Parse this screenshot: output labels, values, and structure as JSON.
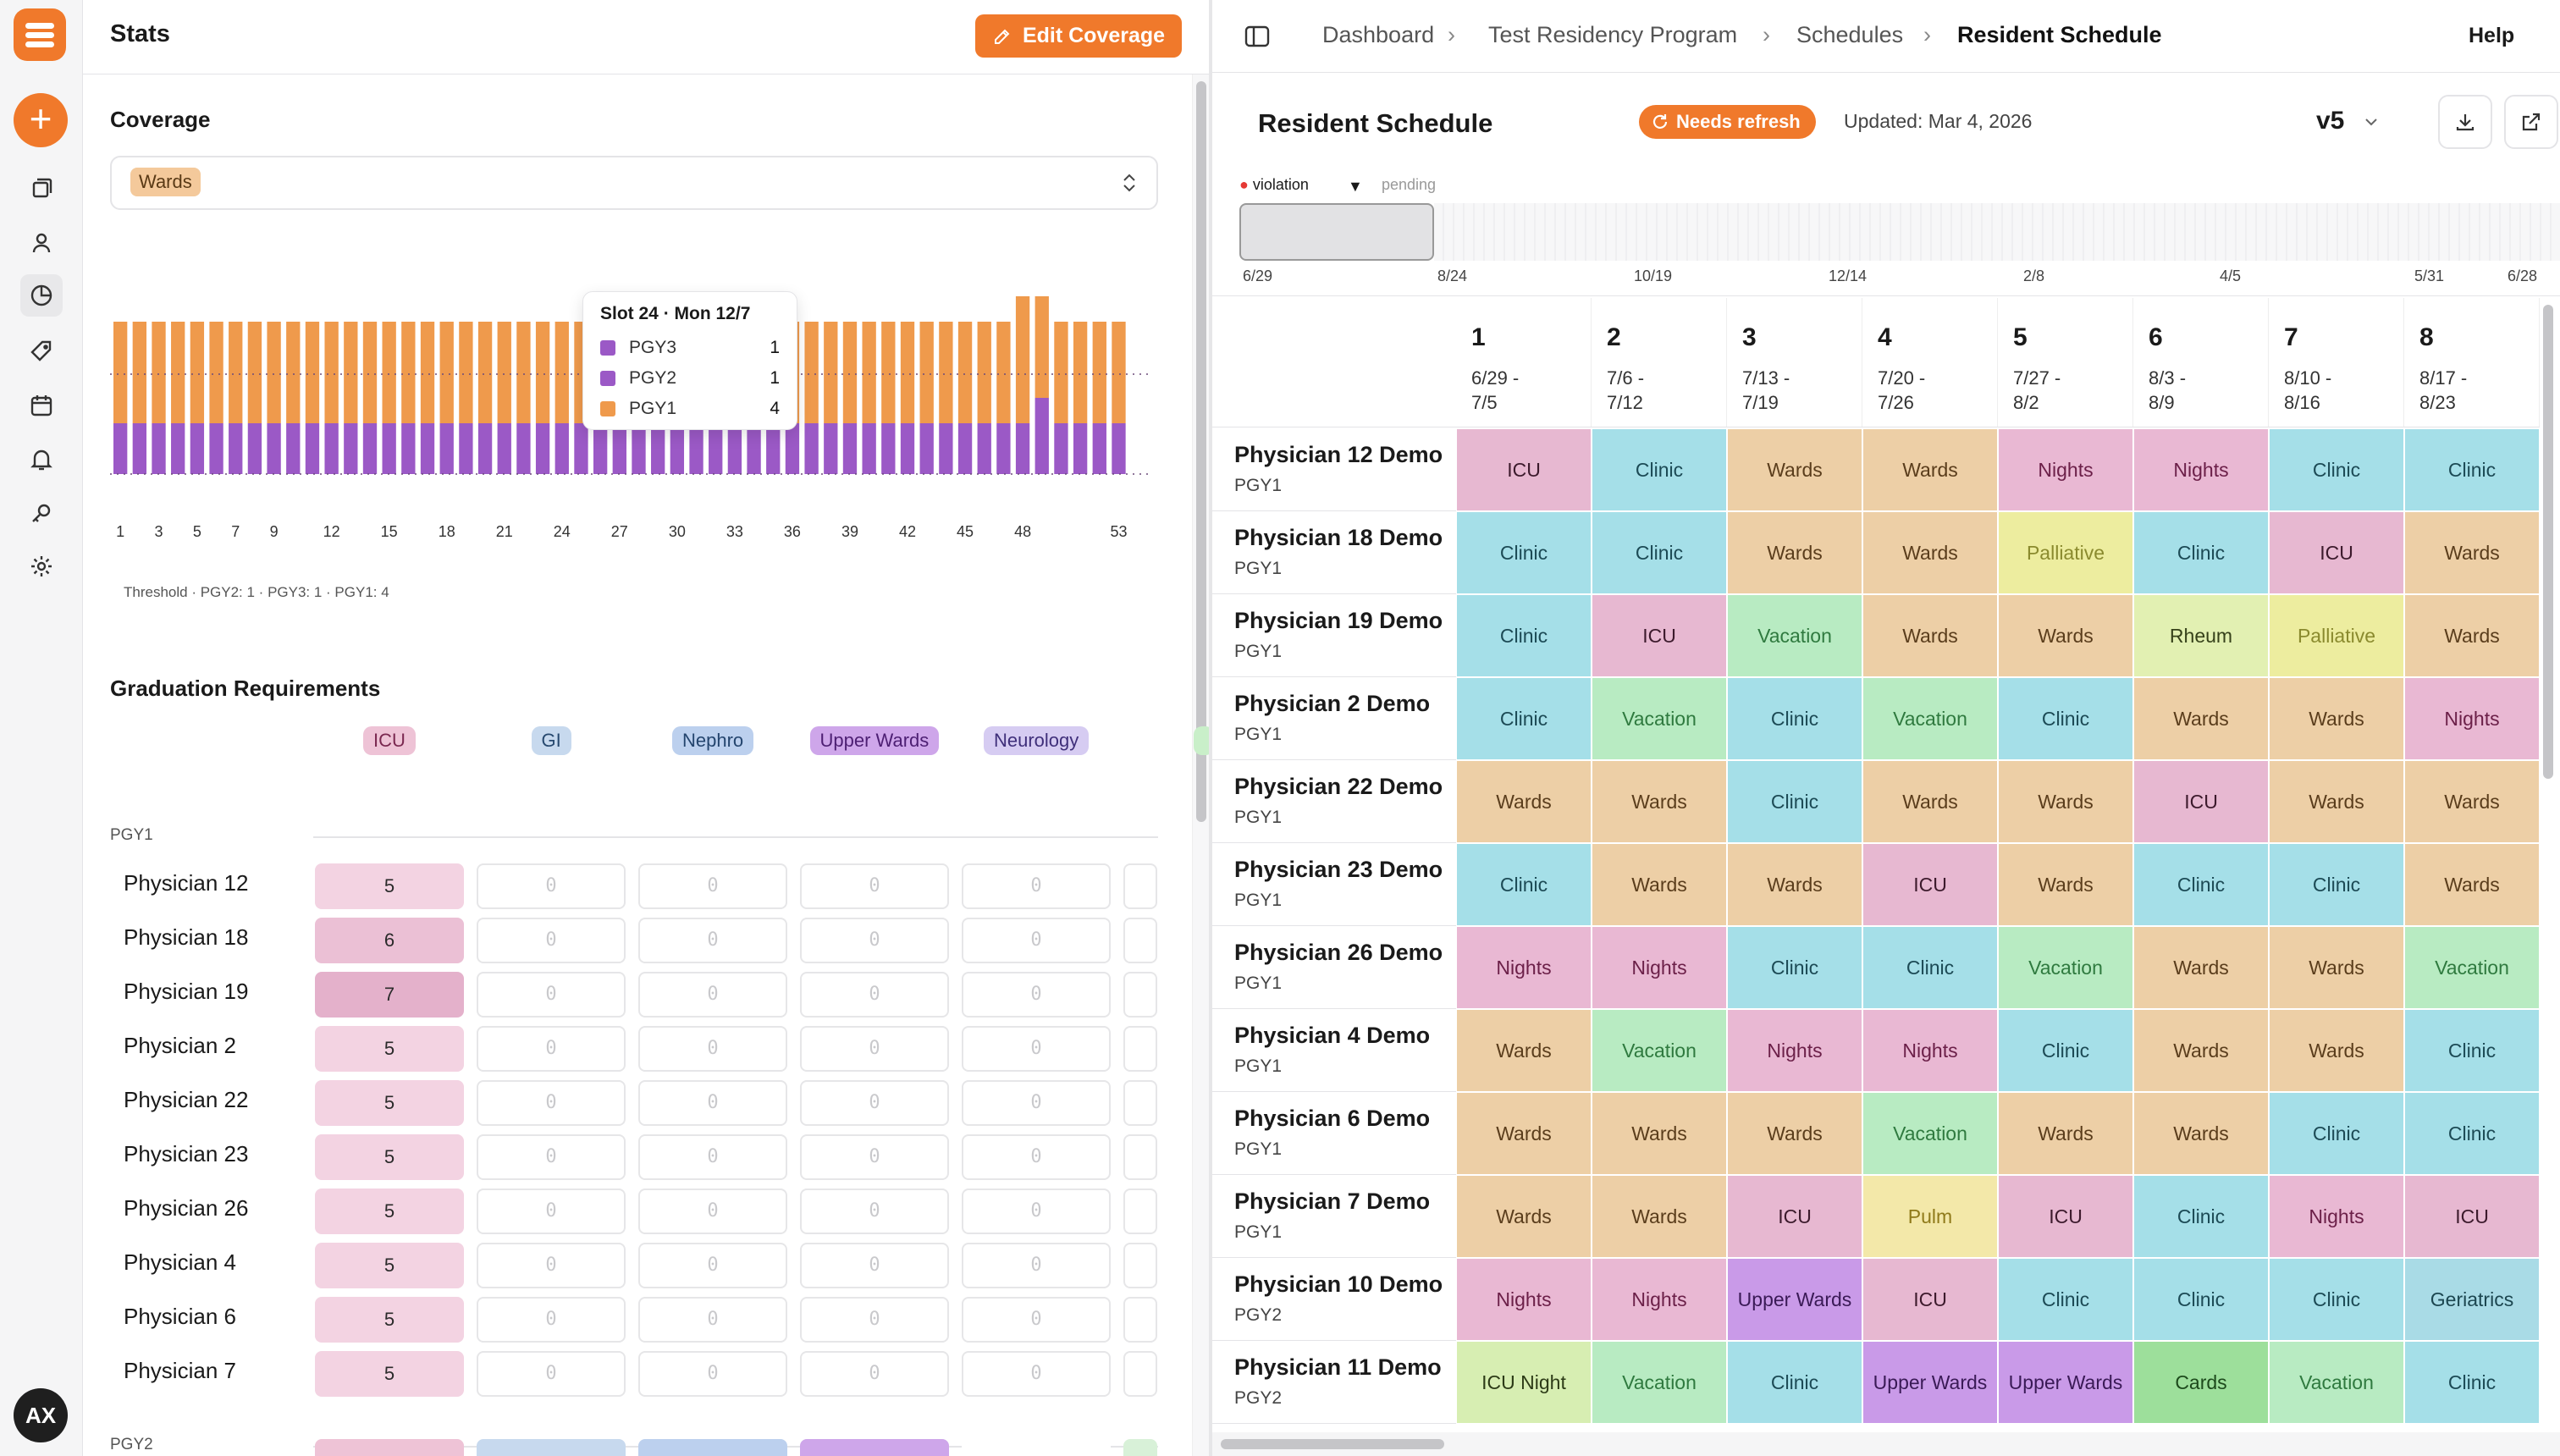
{
  "app": {
    "user_initials": "AX"
  },
  "stats": {
    "title": "Stats",
    "edit_coverage_label": "Edit Coverage",
    "coverage": {
      "heading": "Coverage",
      "selected_chip": "Wards",
      "threshold_text": "Threshold · PGY2: 1 · PGY3: 1 · PGY1: 4"
    },
    "tooltip": {
      "title": "Slot 24 · Mon 12/7",
      "rows": [
        {
          "label": "PGY3",
          "value": "1",
          "color": "#9b59c6"
        },
        {
          "label": "PGY2",
          "value": "1",
          "color": "#9b59c6"
        },
        {
          "label": "PGY1",
          "value": "4",
          "color": "#ef9a4c"
        }
      ]
    },
    "graduation": {
      "heading": "Graduation Requirements",
      "columns": [
        {
          "label": "ICU",
          "bg": "#eec3d6",
          "fg": "#7a2850"
        },
        {
          "label": "GI",
          "bg": "#c7d9ee",
          "fg": "#27496f"
        },
        {
          "label": "Nephro",
          "bg": "#bcd0ee",
          "fg": "#24456e"
        },
        {
          "label": "Upper Wards",
          "bg": "#cea6ea",
          "fg": "#4d1f73"
        },
        {
          "label": "Neurology",
          "bg": "#d6ccf2",
          "fg": "#3f2f7a"
        }
      ],
      "groups": [
        {
          "label": "PGY1",
          "rows": [
            {
              "name": "Physician 12",
              "values": [
                "5",
                "0",
                "0",
                "0",
                "0"
              ]
            },
            {
              "name": "Physician 18",
              "values": [
                "6",
                "0",
                "0",
                "0",
                "0"
              ]
            },
            {
              "name": "Physician 19",
              "values": [
                "7",
                "0",
                "0",
                "0",
                "0"
              ]
            },
            {
              "name": "Physician 2",
              "values": [
                "5",
                "0",
                "0",
                "0",
                "0"
              ]
            },
            {
              "name": "Physician 22",
              "values": [
                "5",
                "0",
                "0",
                "0",
                "0"
              ]
            },
            {
              "name": "Physician 23",
              "values": [
                "5",
                "0",
                "0",
                "0",
                "0"
              ]
            },
            {
              "name": "Physician 26",
              "values": [
                "5",
                "0",
                "0",
                "0",
                "0"
              ]
            },
            {
              "name": "Physician 4",
              "values": [
                "5",
                "0",
                "0",
                "0",
                "0"
              ]
            },
            {
              "name": "Physician 6",
              "values": [
                "5",
                "0",
                "0",
                "0",
                "0"
              ]
            },
            {
              "name": "Physician 7",
              "values": [
                "5",
                "0",
                "0",
                "0",
                "0"
              ]
            }
          ]
        },
        {
          "label": "PGY2",
          "rows": []
        }
      ]
    }
  },
  "chart_data": {
    "type": "bar",
    "stacked": true,
    "x": [
      1,
      2,
      3,
      4,
      5,
      6,
      7,
      8,
      9,
      10,
      11,
      12,
      13,
      14,
      15,
      16,
      17,
      18,
      19,
      20,
      21,
      22,
      23,
      24,
      25,
      26,
      27,
      28,
      29,
      30,
      31,
      32,
      33,
      34,
      35,
      36,
      37,
      38,
      39,
      40,
      41,
      42,
      43,
      44,
      45,
      46,
      47,
      48,
      49,
      50,
      51,
      52,
      53
    ],
    "xticks": [
      1,
      3,
      5,
      7,
      9,
      12,
      15,
      18,
      21,
      24,
      27,
      30,
      33,
      36,
      39,
      42,
      45,
      48,
      53
    ],
    "series": [
      {
        "name": "PGY3",
        "color": "#9b59c6",
        "values": [
          1,
          1,
          1,
          1,
          1,
          1,
          1,
          1,
          1,
          1,
          1,
          1,
          1,
          1,
          1,
          1,
          1,
          1,
          1,
          1,
          1,
          1,
          1,
          1,
          1,
          1,
          1,
          1,
          1,
          1,
          1,
          1,
          1,
          1,
          1,
          1,
          1,
          1,
          1,
          1,
          1,
          1,
          1,
          1,
          1,
          1,
          1,
          1,
          1,
          1,
          1,
          1,
          1
        ]
      },
      {
        "name": "PGY2",
        "color": "#9b59c6",
        "values": [
          1,
          1,
          1,
          1,
          1,
          1,
          1,
          1,
          1,
          1,
          1,
          1,
          1,
          1,
          1,
          1,
          1,
          1,
          1,
          1,
          1,
          1,
          1,
          1,
          1,
          1,
          1,
          1,
          1,
          1,
          1,
          1,
          1,
          1,
          1,
          1,
          1,
          1,
          1,
          1,
          1,
          1,
          1,
          1,
          1,
          1,
          1,
          1,
          2,
          1,
          1,
          1,
          1
        ]
      },
      {
        "name": "PGY1",
        "color": "#ef9a4c",
        "values": [
          4,
          4,
          4,
          4,
          4,
          4,
          4,
          4,
          4,
          4,
          4,
          4,
          4,
          4,
          4,
          4,
          4,
          4,
          4,
          4,
          4,
          4,
          4,
          4,
          4,
          4,
          4,
          4,
          4,
          4,
          4,
          4,
          4,
          4,
          4,
          4,
          4,
          4,
          4,
          4,
          4,
          4,
          4,
          4,
          4,
          4,
          4,
          5,
          4,
          4,
          4,
          4,
          4
        ]
      }
    ],
    "threshold": 6,
    "ylim": [
      0,
      8
    ]
  },
  "schedule": {
    "breadcrumbs": [
      "Dashboard",
      "Test Residency Program",
      "Schedules",
      "Resident Schedule"
    ],
    "help_label": "Help",
    "title": "Resident Schedule",
    "badge": "Needs refresh",
    "updated": "Updated: Mar 4, 2026",
    "version": "v5",
    "timeline": {
      "legend_violation": "violation",
      "legend_pending": "pending",
      "labels": [
        "6/29",
        "8/24",
        "10/19",
        "12/14",
        "2/8",
        "4/5",
        "5/31",
        "6/28"
      ]
    },
    "colors": {
      "ICU": [
        "#e7b8d1",
        "#3c1a2c"
      ],
      "Clinic": [
        "#a5dfe8",
        "#1c4a55"
      ],
      "Wards": [
        "#edcfa6",
        "#5a3d1c"
      ],
      "Nights": [
        "#e9b8d3",
        "#6b1f48"
      ],
      "Palliative": [
        "#eded9f",
        "#8a8a2e"
      ],
      "Vacation": [
        "#b8ebc2",
        "#2f7a3f"
      ],
      "Rheum": [
        "#e2f0b2",
        "#36411a"
      ],
      "Pulm": [
        "#f3e8a9",
        "#8f7a1a"
      ],
      "Upper Wards": [
        "#c99ae8",
        "#3a1a56"
      ],
      "Geriatrics": [
        "#a9dbe6",
        "#1c4650"
      ],
      "ICU Night": [
        "#d7eeb2",
        "#2d3b17"
      ],
      "Cards": [
        "#9ddf9b",
        "#1d4a1c"
      ]
    },
    "weeks": [
      {
        "n": "1",
        "d1": "6/29 -",
        "d2": "7/5"
      },
      {
        "n": "2",
        "d1": "7/6 -",
        "d2": "7/12"
      },
      {
        "n": "3",
        "d1": "7/13 -",
        "d2": "7/19"
      },
      {
        "n": "4",
        "d1": "7/20 -",
        "d2": "7/26"
      },
      {
        "n": "5",
        "d1": "7/27 -",
        "d2": "8/2"
      },
      {
        "n": "6",
        "d1": "8/3 -",
        "d2": "8/9"
      },
      {
        "n": "7",
        "d1": "8/10 -",
        "d2": "8/16"
      },
      {
        "n": "8",
        "d1": "8/17 -",
        "d2": "8/23"
      }
    ],
    "residents": [
      {
        "name": "Physician 12 Demo",
        "pgy": "PGY1",
        "a": [
          "ICU",
          "Clinic",
          "Wards",
          "Wards",
          "Nights",
          "Nights",
          "Clinic",
          "Clinic"
        ]
      },
      {
        "name": "Physician 18 Demo",
        "pgy": "PGY1",
        "a": [
          "Clinic",
          "Clinic",
          "Wards",
          "Wards",
          "Palliative",
          "Clinic",
          "ICU",
          "Wards"
        ]
      },
      {
        "name": "Physician 19 Demo",
        "pgy": "PGY1",
        "a": [
          "Clinic",
          "ICU",
          "Vacation",
          "Wards",
          "Wards",
          "Rheum",
          "Palliative",
          "Wards"
        ]
      },
      {
        "name": "Physician 2 Demo",
        "pgy": "PGY1",
        "a": [
          "Clinic",
          "Vacation",
          "Clinic",
          "Vacation",
          "Clinic",
          "Wards",
          "Wards",
          "Nights"
        ]
      },
      {
        "name": "Physician 22 Demo",
        "pgy": "PGY1",
        "a": [
          "Wards",
          "Wards",
          "Clinic",
          "Wards",
          "Wards",
          "ICU",
          "Wards",
          "Wards"
        ]
      },
      {
        "name": "Physician 23 Demo",
        "pgy": "PGY1",
        "a": [
          "Clinic",
          "Wards",
          "Wards",
          "ICU",
          "Wards",
          "Clinic",
          "Clinic",
          "Wards"
        ]
      },
      {
        "name": "Physician 26 Demo",
        "pgy": "PGY1",
        "a": [
          "Nights",
          "Nights",
          "Clinic",
          "Clinic",
          "Vacation",
          "Wards",
          "Wards",
          "Vacation"
        ]
      },
      {
        "name": "Physician 4 Demo",
        "pgy": "PGY1",
        "a": [
          "Wards",
          "Vacation",
          "Nights",
          "Nights",
          "Clinic",
          "Wards",
          "Wards",
          "Clinic"
        ]
      },
      {
        "name": "Physician 6 Demo",
        "pgy": "PGY1",
        "a": [
          "Wards",
          "Wards",
          "Wards",
          "Vacation",
          "Wards",
          "Wards",
          "Clinic",
          "Clinic"
        ]
      },
      {
        "name": "Physician 7 Demo",
        "pgy": "PGY1",
        "a": [
          "Wards",
          "Wards",
          "ICU",
          "Pulm",
          "ICU",
          "Clinic",
          "Nights",
          "ICU"
        ]
      },
      {
        "name": "Physician 10 Demo",
        "pgy": "PGY2",
        "a": [
          "Nights",
          "Nights",
          "Upper Wards",
          "ICU",
          "Clinic",
          "Clinic",
          "Clinic",
          "Geriatrics"
        ]
      },
      {
        "name": "Physician 11 Demo",
        "pgy": "PGY2",
        "a": [
          "ICU Night",
          "Vacation",
          "Clinic",
          "Upper Wards",
          "Upper Wards",
          "Cards",
          "Vacation",
          "Clinic"
        ]
      }
    ]
  }
}
